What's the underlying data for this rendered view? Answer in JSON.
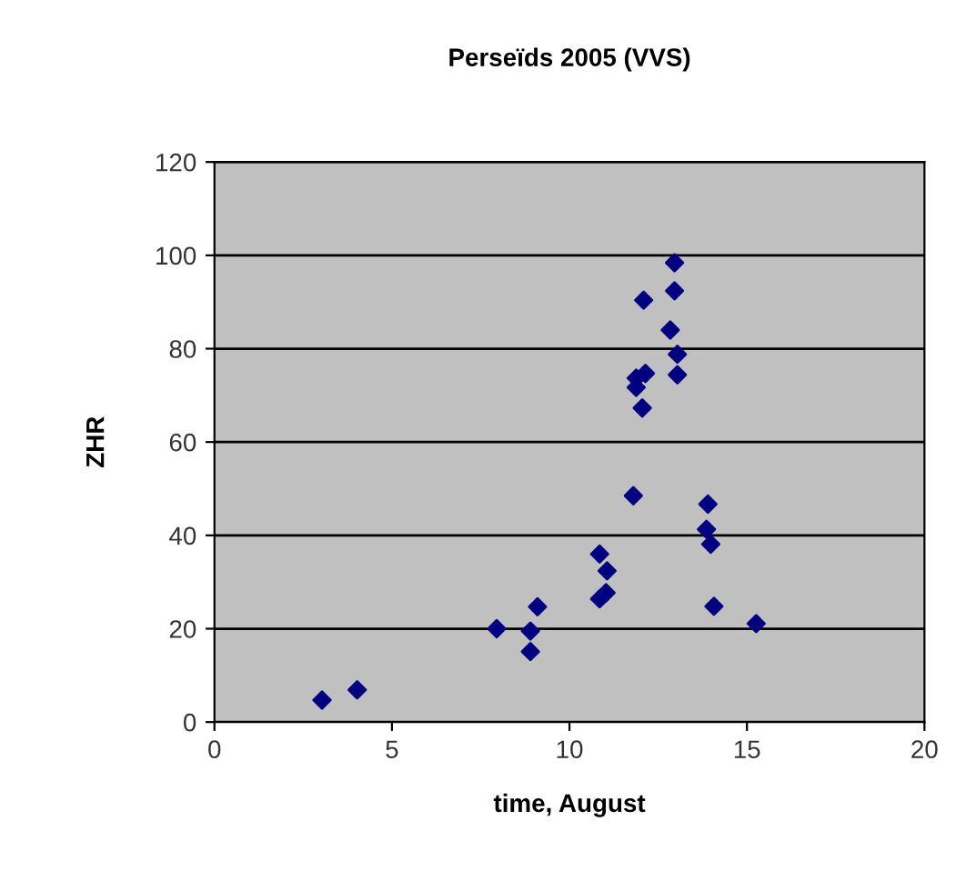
{
  "chart_data": {
    "type": "scatter",
    "title": "Perseïds 2005 (VVS)",
    "xlabel": "time, August",
    "ylabel": "ZHR",
    "marker": "diamond",
    "grid": "y",
    "xlim": [
      0,
      20
    ],
    "xticks": [
      0,
      5,
      10,
      15,
      20
    ],
    "ylim": [
      0,
      120
    ],
    "yticks": [
      0,
      20,
      40,
      60,
      80,
      100,
      120
    ],
    "series": [
      {
        "color": "#000080",
        "x": [
          3.03,
          4.02,
          7.95,
          8.9,
          8.9,
          9.1,
          10.85,
          11.06,
          11.03,
          10.85,
          11.8,
          12.05,
          11.88,
          11.88,
          12.14,
          12.09,
          12.96,
          12.96,
          12.84,
          13.04,
          13.04,
          13.9,
          13.86,
          13.98,
          14.07,
          15.26
        ],
        "values": [
          4.7,
          6.9,
          20.0,
          19.5,
          15.1,
          24.7,
          36.0,
          32.4,
          27.7,
          26.4,
          48.5,
          67.3,
          71.7,
          73.7,
          74.7,
          90.4,
          98.4,
          92.4,
          84.0,
          78.8,
          74.4,
          46.7,
          41.3,
          38.1,
          24.8,
          21.1
        ]
      }
    ]
  }
}
